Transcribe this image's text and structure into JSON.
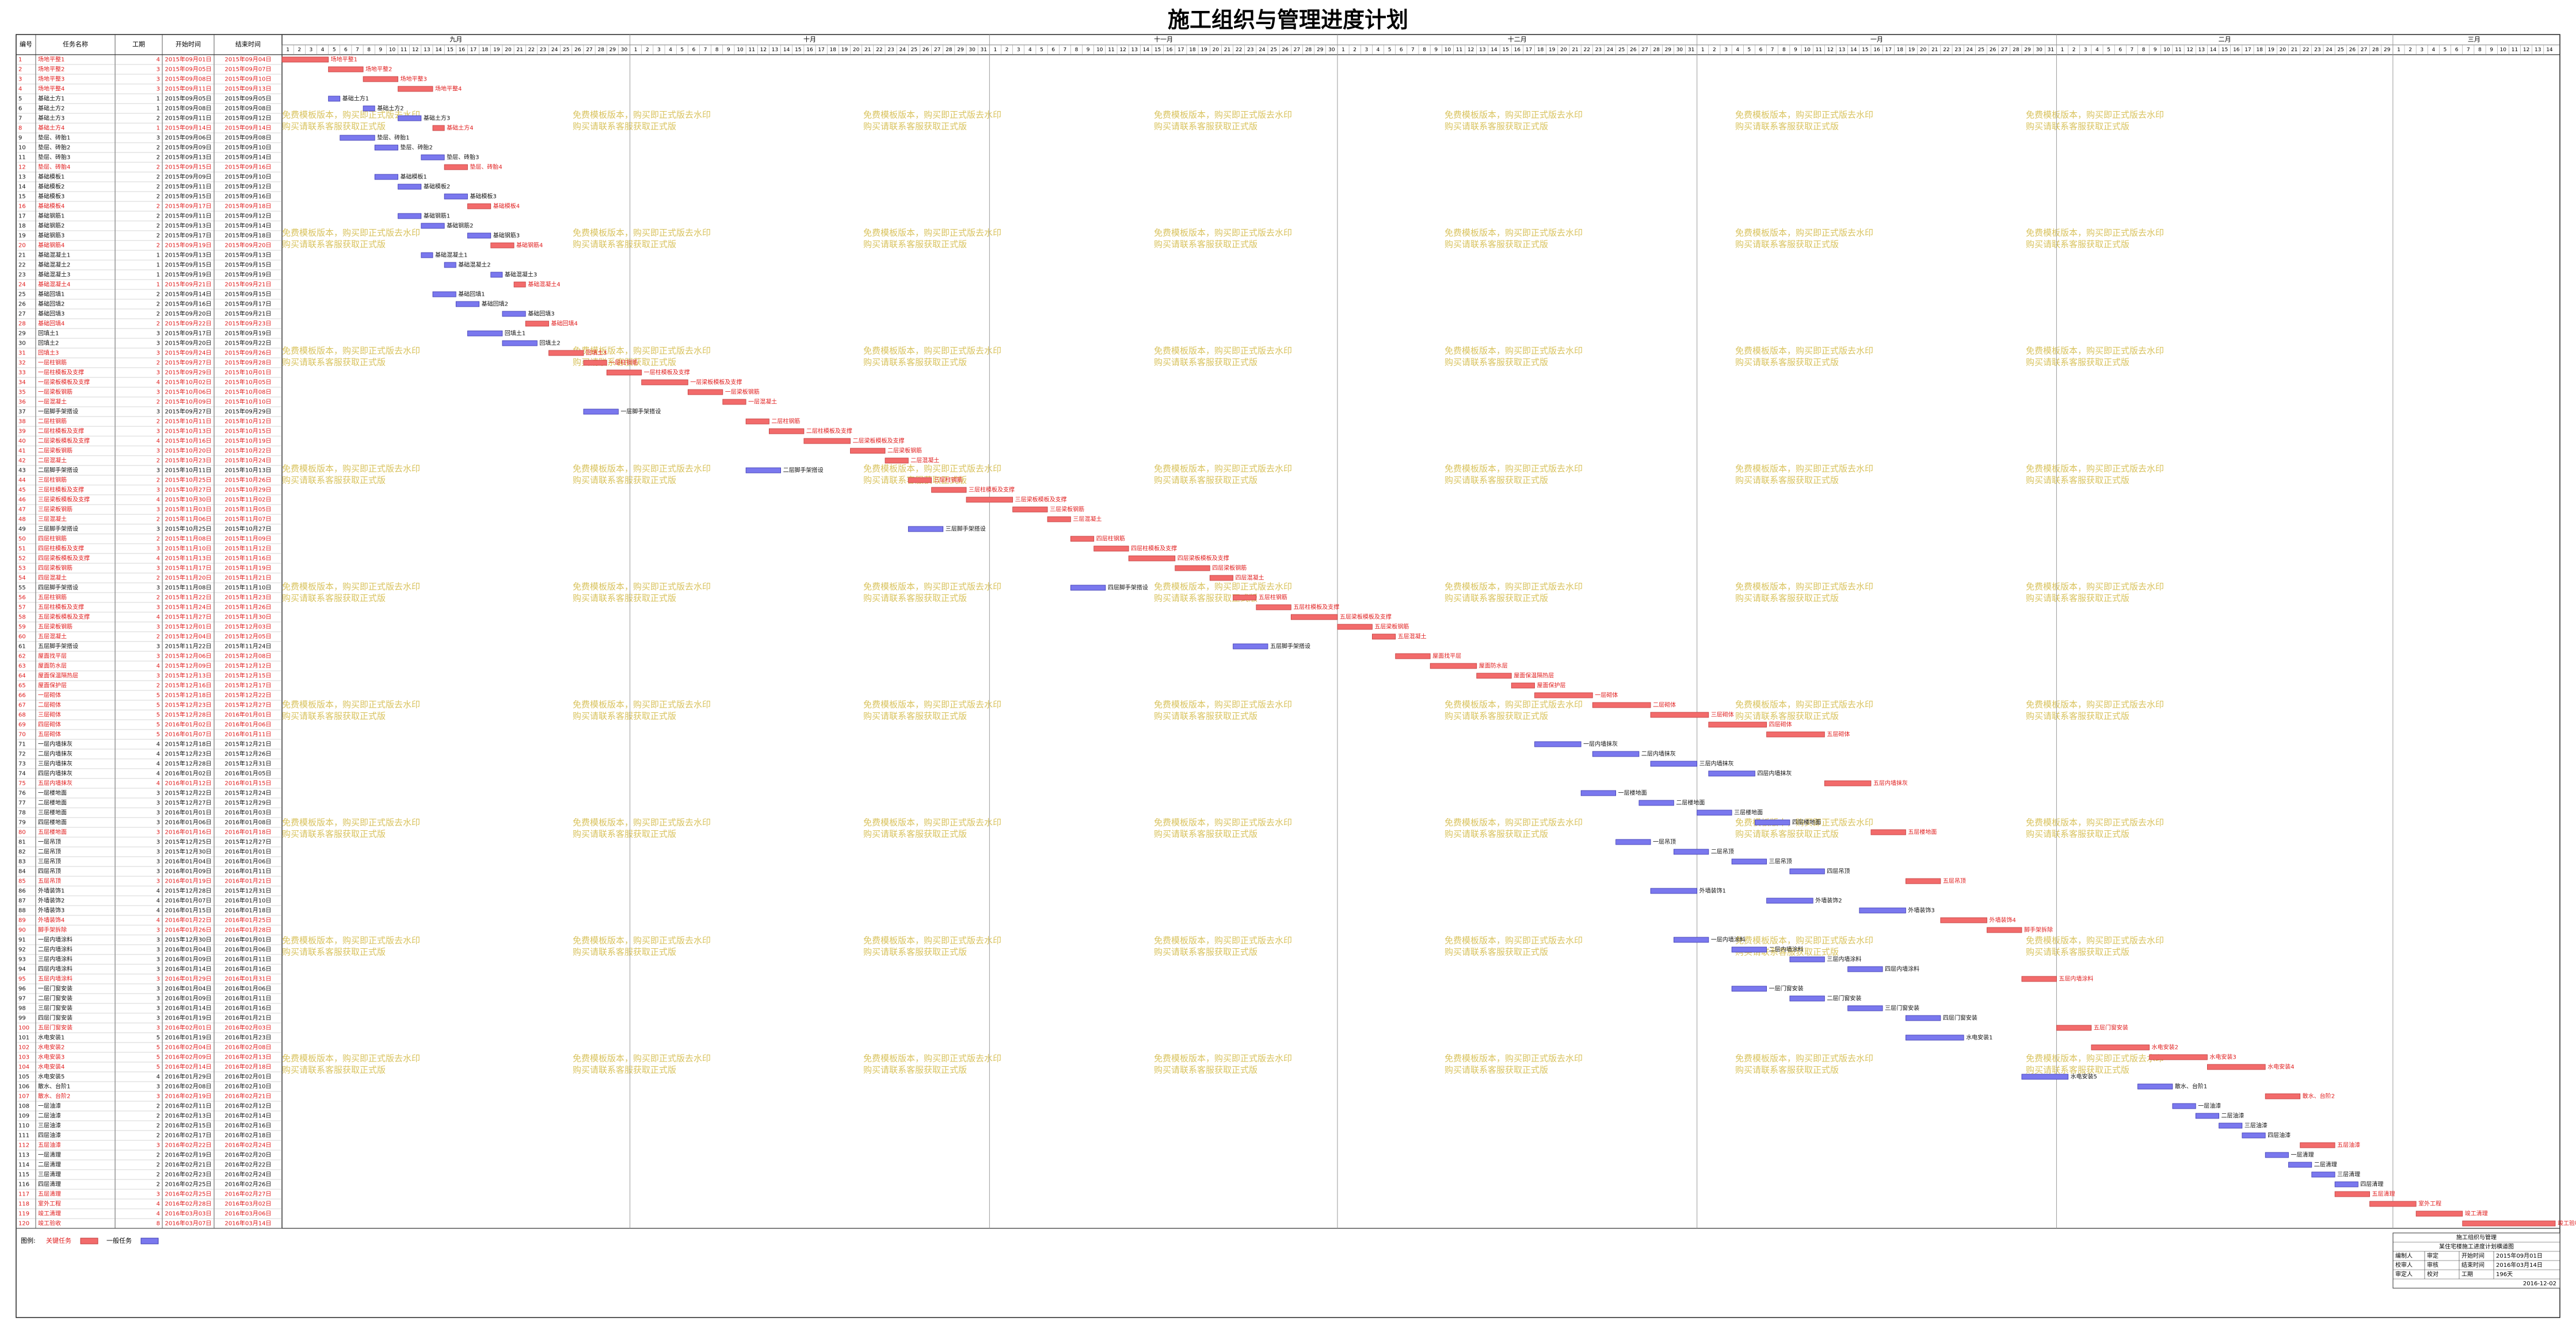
{
  "header": {
    "title": "施工组织与管理进度计划"
  },
  "table": {
    "columns": [
      "编号",
      "任务名称",
      "工期",
      "开始时间",
      "结束时间"
    ],
    "tasks": [
      [
        1,
        "场地平整1",
        4,
        "2015年09月01日",
        "2015年09月04日",
        true
      ],
      [
        2,
        "场地平整2",
        3,
        "2015年09月05日",
        "2015年09月07日",
        true
      ],
      [
        3,
        "场地平整3",
        3,
        "2015年09月08日",
        "2015年09月10日",
        true
      ],
      [
        4,
        "场地平整4",
        3,
        "2015年09月11日",
        "2015年09月13日",
        true
      ],
      [
        5,
        "基础土方1",
        1,
        "2015年09月05日",
        "2015年09月05日",
        false
      ],
      [
        6,
        "基础土方2",
        1,
        "2015年09月08日",
        "2015年09月08日",
        false
      ],
      [
        7,
        "基础土方3",
        2,
        "2015年09月11日",
        "2015年09月12日",
        false
      ],
      [
        8,
        "基础土方4",
        1,
        "2015年09月14日",
        "2015年09月14日",
        true
      ],
      [
        9,
        "垫层、砖胎1",
        3,
        "2015年09月06日",
        "2015年09月08日",
        false
      ],
      [
        10,
        "垫层、砖胎2",
        2,
        "2015年09月09日",
        "2015年09月10日",
        false
      ],
      [
        11,
        "垫层、砖胎3",
        2,
        "2015年09月13日",
        "2015年09月14日",
        false
      ],
      [
        12,
        "垫层、砖胎4",
        2,
        "2015年09月15日",
        "2015年09月16日",
        true
      ],
      [
        13,
        "基础模板1",
        2,
        "2015年09月09日",
        "2015年09月10日",
        false
      ],
      [
        14,
        "基础模板2",
        2,
        "2015年09月11日",
        "2015年09月12日",
        false
      ],
      [
        15,
        "基础模板3",
        2,
        "2015年09月15日",
        "2015年09月16日",
        false
      ],
      [
        16,
        "基础模板4",
        2,
        "2015年09月17日",
        "2015年09月18日",
        true
      ],
      [
        17,
        "基础钢筋1",
        2,
        "2015年09月11日",
        "2015年09月12日",
        false
      ],
      [
        18,
        "基础钢筋2",
        2,
        "2015年09月13日",
        "2015年09月14日",
        false
      ],
      [
        19,
        "基础钢筋3",
        2,
        "2015年09月17日",
        "2015年09月18日",
        false
      ],
      [
        20,
        "基础钢筋4",
        2,
        "2015年09月19日",
        "2015年09月20日",
        true
      ],
      [
        21,
        "基础混凝土1",
        1,
        "2015年09月13日",
        "2015年09月13日",
        false
      ],
      [
        22,
        "基础混凝土2",
        1,
        "2015年09月15日",
        "2015年09月15日",
        false
      ],
      [
        23,
        "基础混凝土3",
        1,
        "2015年09月19日",
        "2015年09月19日",
        false
      ],
      [
        24,
        "基础混凝土4",
        1,
        "2015年09月21日",
        "2015年09月21日",
        true
      ],
      [
        25,
        "基础回填1",
        2,
        "2015年09月14日",
        "2015年09月15日",
        false
      ],
      [
        26,
        "基础回填2",
        2,
        "2015年09月16日",
        "2015年09月17日",
        false
      ],
      [
        27,
        "基础回填3",
        2,
        "2015年09月20日",
        "2015年09月21日",
        false
      ],
      [
        28,
        "基础回填4",
        2,
        "2015年09月22日",
        "2015年09月23日",
        true
      ],
      [
        29,
        "回填土1",
        3,
        "2015年09月17日",
        "2015年09月19日",
        false
      ],
      [
        30,
        "回填土2",
        3,
        "2015年09月20日",
        "2015年09月22日",
        false
      ],
      [
        31,
        "回填土3",
        3,
        "2015年09月24日",
        "2015年09月26日",
        true
      ],
      [
        32,
        "一层柱钢筋",
        2,
        "2015年09月27日",
        "2015年09月28日",
        true
      ],
      [
        33,
        "一层柱模板及支撑",
        3,
        "2015年09月29日",
        "2015年10月01日",
        true
      ],
      [
        34,
        "一层梁板模板及支撑",
        4,
        "2015年10月02日",
        "2015年10月05日",
        true
      ],
      [
        35,
        "一层梁板钢筋",
        3,
        "2015年10月06日",
        "2015年10月08日",
        true
      ],
      [
        36,
        "一层混凝土",
        2,
        "2015年10月09日",
        "2015年10月10日",
        true
      ],
      [
        37,
        "一层脚手架搭设",
        3,
        "2015年09月27日",
        "2015年09月29日",
        false
      ],
      [
        38,
        "二层柱钢筋",
        2,
        "2015年10月11日",
        "2015年10月12日",
        true
      ],
      [
        39,
        "二层柱模板及支撑",
        3,
        "2015年10月13日",
        "2015年10月15日",
        true
      ],
      [
        40,
        "二层梁板模板及支撑",
        4,
        "2015年10月16日",
        "2015年10月19日",
        true
      ],
      [
        41,
        "二层梁板钢筋",
        3,
        "2015年10月20日",
        "2015年10月22日",
        true
      ],
      [
        42,
        "二层混凝土",
        2,
        "2015年10月23日",
        "2015年10月24日",
        true
      ],
      [
        43,
        "二层脚手架搭设",
        3,
        "2015年10月11日",
        "2015年10月13日",
        false
      ],
      [
        44,
        "三层柱钢筋",
        2,
        "2015年10月25日",
        "2015年10月26日",
        true
      ],
      [
        45,
        "三层柱模板及支撑",
        3,
        "2015年10月27日",
        "2015年10月29日",
        true
      ],
      [
        46,
        "三层梁板模板及支撑",
        4,
        "2015年10月30日",
        "2015年11月02日",
        true
      ],
      [
        47,
        "三层梁板钢筋",
        3,
        "2015年11月03日",
        "2015年11月05日",
        true
      ],
      [
        48,
        "三层混凝土",
        2,
        "2015年11月06日",
        "2015年11月07日",
        true
      ],
      [
        49,
        "三层脚手架搭设",
        3,
        "2015年10月25日",
        "2015年10月27日",
        false
      ],
      [
        50,
        "四层柱钢筋",
        2,
        "2015年11月08日",
        "2015年11月09日",
        true
      ],
      [
        51,
        "四层柱模板及支撑",
        3,
        "2015年11月10日",
        "2015年11月12日",
        true
      ],
      [
        52,
        "四层梁板模板及支撑",
        4,
        "2015年11月13日",
        "2015年11月16日",
        true
      ],
      [
        53,
        "四层梁板钢筋",
        3,
        "2015年11月17日",
        "2015年11月19日",
        true
      ],
      [
        54,
        "四层混凝土",
        2,
        "2015年11月20日",
        "2015年11月21日",
        true
      ],
      [
        55,
        "四层脚手架搭设",
        3,
        "2015年11月08日",
        "2015年11月10日",
        false
      ],
      [
        56,
        "五层柱钢筋",
        2,
        "2015年11月22日",
        "2015年11月23日",
        true
      ],
      [
        57,
        "五层柱模板及支撑",
        3,
        "2015年11月24日",
        "2015年11月26日",
        true
      ],
      [
        58,
        "五层梁板模板及支撑",
        4,
        "2015年11月27日",
        "2015年11月30日",
        true
      ],
      [
        59,
        "五层梁板钢筋",
        3,
        "2015年12月01日",
        "2015年12月03日",
        true
      ],
      [
        60,
        "五层混凝土",
        2,
        "2015年12月04日",
        "2015年12月05日",
        true
      ],
      [
        61,
        "五层脚手架搭设",
        3,
        "2015年11月22日",
        "2015年11月24日",
        false
      ],
      [
        62,
        "屋面找平层",
        3,
        "2015年12月06日",
        "2015年12月08日",
        true
      ],
      [
        63,
        "屋面防水层",
        4,
        "2015年12月09日",
        "2015年12月12日",
        true
      ],
      [
        64,
        "屋面保温隔热层",
        3,
        "2015年12月13日",
        "2015年12月15日",
        true
      ],
      [
        65,
        "屋面保护层",
        2,
        "2015年12月16日",
        "2015年12月17日",
        true
      ],
      [
        66,
        "一层砌体",
        5,
        "2015年12月18日",
        "2015年12月22日",
        true
      ],
      [
        67,
        "二层砌体",
        5,
        "2015年12月23日",
        "2015年12月27日",
        true
      ],
      [
        68,
        "三层砌体",
        5,
        "2015年12月28日",
        "2016年01月01日",
        true
      ],
      [
        69,
        "四层砌体",
        5,
        "2016年01月02日",
        "2016年01月06日",
        true
      ],
      [
        70,
        "五层砌体",
        5,
        "2016年01月07日",
        "2016年01月11日",
        true
      ],
      [
        71,
        "一层内墙抹灰",
        4,
        "2015年12月18日",
        "2015年12月21日",
        false
      ],
      [
        72,
        "二层内墙抹灰",
        4,
        "2015年12月23日",
        "2015年12月26日",
        false
      ],
      [
        73,
        "三层内墙抹灰",
        4,
        "2015年12月28日",
        "2015年12月31日",
        false
      ],
      [
        74,
        "四层内墙抹灰",
        4,
        "2016年01月02日",
        "2016年01月05日",
        false
      ],
      [
        75,
        "五层内墙抹灰",
        4,
        "2016年01月12日",
        "2016年01月15日",
        true
      ],
      [
        76,
        "一层楼地面",
        3,
        "2015年12月22日",
        "2015年12月24日",
        false
      ],
      [
        77,
        "二层楼地面",
        3,
        "2015年12月27日",
        "2015年12月29日",
        false
      ],
      [
        78,
        "三层楼地面",
        3,
        "2016年01月01日",
        "2016年01月03日",
        false
      ],
      [
        79,
        "四层楼地面",
        3,
        "2016年01月06日",
        "2016年01月08日",
        false
      ],
      [
        80,
        "五层楼地面",
        3,
        "2016年01月16日",
        "2016年01月18日",
        true
      ],
      [
        81,
        "一层吊顶",
        3,
        "2015年12月25日",
        "2015年12月27日",
        false
      ],
      [
        82,
        "二层吊顶",
        3,
        "2015年12月30日",
        "2016年01月01日",
        false
      ],
      [
        83,
        "三层吊顶",
        3,
        "2016年01月04日",
        "2016年01月06日",
        false
      ],
      [
        84,
        "四层吊顶",
        3,
        "2016年01月09日",
        "2016年01月11日",
        false
      ],
      [
        85,
        "五层吊顶",
        3,
        "2016年01月19日",
        "2016年01月21日",
        true
      ],
      [
        86,
        "外墙装饰1",
        4,
        "2015年12月28日",
        "2015年12月31日",
        false
      ],
      [
        87,
        "外墙装饰2",
        4,
        "2016年01月07日",
        "2016年01月10日",
        false
      ],
      [
        88,
        "外墙装饰3",
        4,
        "2016年01月15日",
        "2016年01月18日",
        false
      ],
      [
        89,
        "外墙装饰4",
        4,
        "2016年01月22日",
        "2016年01月25日",
        true
      ],
      [
        90,
        "脚手架拆除",
        3,
        "2016年01月26日",
        "2016年01月28日",
        true
      ],
      [
        91,
        "一层内墙涂料",
        3,
        "2015年12月30日",
        "2016年01月01日",
        false
      ],
      [
        92,
        "二层内墙涂料",
        3,
        "2016年01月04日",
        "2016年01月06日",
        false
      ],
      [
        93,
        "三层内墙涂料",
        3,
        "2016年01月09日",
        "2016年01月11日",
        false
      ],
      [
        94,
        "四层内墙涂料",
        3,
        "2016年01月14日",
        "2016年01月16日",
        false
      ],
      [
        95,
        "五层内墙涂料",
        3,
        "2016年01月29日",
        "2016年01月31日",
        true
      ],
      [
        96,
        "一层门窗安装",
        3,
        "2016年01月04日",
        "2016年01月06日",
        false
      ],
      [
        97,
        "二层门窗安装",
        3,
        "2016年01月09日",
        "2016年01月11日",
        false
      ],
      [
        98,
        "三层门窗安装",
        3,
        "2016年01月14日",
        "2016年01月16日",
        false
      ],
      [
        99,
        "四层门窗安装",
        3,
        "2016年01月19日",
        "2016年01月21日",
        false
      ],
      [
        100,
        "五层门窗安装",
        3,
        "2016年02月01日",
        "2016年02月03日",
        true
      ],
      [
        101,
        "水电安装1",
        5,
        "2016年01月19日",
        "2016年01月23日",
        false
      ],
      [
        102,
        "水电安装2",
        5,
        "2016年02月04日",
        "2016年02月08日",
        true
      ],
      [
        103,
        "水电安装3",
        5,
        "2016年02月09日",
        "2016年02月13日",
        true
      ],
      [
        104,
        "水电安装4",
        5,
        "2016年02月14日",
        "2016年02月18日",
        true
      ],
      [
        105,
        "水电安装5",
        4,
        "2016年01月29日",
        "2016年02月01日",
        false
      ],
      [
        106,
        "散水、台阶1",
        3,
        "2016年02月08日",
        "2016年02月10日",
        false
      ],
      [
        107,
        "散水、台阶2",
        3,
        "2016年02月19日",
        "2016年02月21日",
        true
      ],
      [
        108,
        "一层油漆",
        2,
        "2016年02月11日",
        "2016年02月12日",
        false
      ],
      [
        109,
        "二层油漆",
        2,
        "2016年02月13日",
        "2016年02月14日",
        false
      ],
      [
        110,
        "三层油漆",
        2,
        "2016年02月15日",
        "2016年02月16日",
        false
      ],
      [
        111,
        "四层油漆",
        2,
        "2016年02月17日",
        "2016年02月18日",
        false
      ],
      [
        112,
        "五层油漆",
        3,
        "2016年02月22日",
        "2016年02月24日",
        true
      ],
      [
        113,
        "一层清理",
        2,
        "2016年02月19日",
        "2016年02月20日",
        false
      ],
      [
        114,
        "二层清理",
        2,
        "2016年02月21日",
        "2016年02月22日",
        false
      ],
      [
        115,
        "三层清理",
        2,
        "2016年02月23日",
        "2016年02月24日",
        false
      ],
      [
        116,
        "四层清理",
        2,
        "2016年02月25日",
        "2016年02月26日",
        false
      ],
      [
        117,
        "五层清理",
        3,
        "2016年02月25日",
        "2016年02月27日",
        true
      ],
      [
        118,
        "室外工程",
        4,
        "2016年02月28日",
        "2016年03月02日",
        true
      ],
      [
        119,
        "竣工清理",
        4,
        "2016年03月03日",
        "2016年03月06日",
        true
      ],
      [
        120,
        "竣工验收",
        8,
        "2016年03月07日",
        "2016年03月14日",
        true
      ]
    ]
  },
  "timeline": {
    "months": [
      {
        "label": "九月",
        "days": [
          1,
          2,
          3,
          4,
          5,
          6,
          7,
          8,
          9,
          10,
          11,
          12,
          13,
          14,
          15,
          16,
          17,
          18,
          19,
          20,
          21,
          22,
          23,
          24,
          25,
          26,
          27,
          28,
          29,
          30
        ]
      },
      {
        "label": "十月",
        "days": [
          1,
          2,
          3,
          4,
          5,
          6,
          7,
          8,
          9,
          10,
          11,
          12,
          13,
          14,
          15,
          16,
          17,
          18,
          19,
          20,
          21,
          22,
          23,
          24,
          25,
          26,
          27,
          28,
          29,
          30,
          31
        ]
      },
      {
        "label": "十一月",
        "days": [
          1,
          2,
          3,
          4,
          5,
          6,
          7,
          8,
          9,
          10,
          11,
          12,
          13,
          14,
          15,
          16,
          17,
          18,
          19,
          20,
          21,
          22,
          23,
          24,
          25,
          26,
          27,
          28,
          29,
          30
        ]
      },
      {
        "label": "十二月",
        "days": [
          1,
          2,
          3,
          4,
          5,
          6,
          7,
          8,
          9,
          10,
          11,
          12,
          13,
          14,
          15,
          16,
          17,
          18,
          19,
          20,
          21,
          22,
          23,
          24,
          25,
          26,
          27,
          28,
          29,
          30,
          31
        ]
      },
      {
        "label": "一月",
        "days": [
          1,
          2,
          3,
          4,
          5,
          6,
          7,
          8,
          9,
          10,
          11,
          12,
          13,
          14,
          15,
          16,
          17,
          18,
          19,
          20,
          21,
          22,
          23,
          24,
          25,
          26,
          27,
          28,
          29,
          30,
          31
        ]
      },
      {
        "label": "二月",
        "days": [
          1,
          2,
          3,
          4,
          5,
          6,
          7,
          8,
          9,
          10,
          11,
          12,
          13,
          14,
          15,
          16,
          17,
          18,
          19,
          20,
          21,
          22,
          23,
          24,
          25,
          26,
          27,
          28,
          29
        ]
      },
      {
        "label": "三月",
        "days": [
          1,
          2,
          3,
          4,
          5,
          6,
          7,
          8,
          9,
          10,
          11,
          12,
          13,
          14
        ]
      }
    ]
  },
  "colors": {
    "critical": "#f26b6b",
    "normal": "#7a78ee",
    "critical_text": "#e01b1b",
    "normal_text": "#111111"
  },
  "legend": {
    "title": "图例:",
    "critical": "关键任务",
    "normal": "一般任务"
  },
  "watermark": [
    "免费模板版本，购买即正式版去水印",
    "购买请联系客服获取正式版"
  ],
  "info": {
    "title": "施工组织与管理",
    "subtitle": "某住宅楼施工进度计划横道图",
    "rows": [
      [
        "编制人",
        "审定",
        "开始时间",
        "2015年09月01日"
      ],
      [
        "校审人",
        "审核",
        "结束时间",
        "2016年03月14日"
      ],
      [
        "审定人",
        "校对",
        "工期",
        "196天"
      ]
    ],
    "date": "2016-12-02"
  }
}
